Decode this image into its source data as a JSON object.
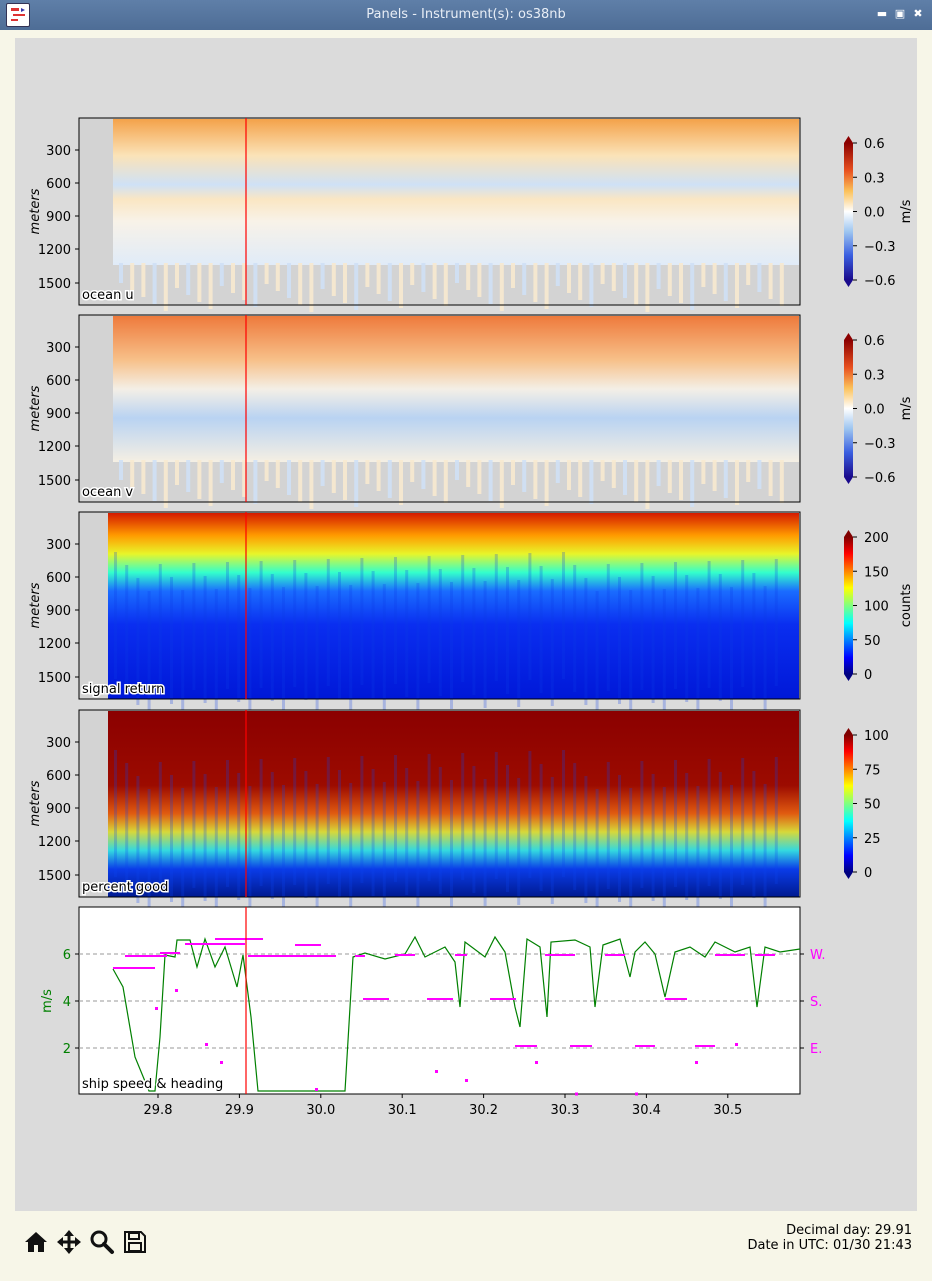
{
  "window": {
    "title": "Panels - Instrument(s): os38nb",
    "icons": [
      "app-icon",
      "minimize-icon",
      "maximize-icon",
      "close-icon"
    ]
  },
  "panels": [
    {
      "label": "ocean u",
      "ylabel": "meters",
      "yticks": [
        "300",
        "600",
        "900",
        "1200",
        "1500"
      ],
      "colorbar": {
        "label": "m/s",
        "ticks": [
          "0.6",
          "0.3",
          "0.0",
          "−0.3",
          "−0.6"
        ],
        "colormap": "red-white-blue"
      }
    },
    {
      "label": "ocean v",
      "ylabel": "meters",
      "yticks": [
        "300",
        "600",
        "900",
        "1200",
        "1500"
      ],
      "colorbar": {
        "label": "m/s",
        "ticks": [
          "0.6",
          "0.3",
          "0.0",
          "−0.3",
          "−0.6"
        ],
        "colormap": "red-white-blue"
      }
    },
    {
      "label": "signal return",
      "ylabel": "meters",
      "yticks": [
        "300",
        "600",
        "900",
        "1200",
        "1500"
      ],
      "colorbar": {
        "label": "counts",
        "ticks": [
          "200",
          "150",
          "100",
          "50",
          "0"
        ],
        "colormap": "jet"
      }
    },
    {
      "label": "percent good",
      "ylabel": "meters",
      "yticks": [
        "300",
        "600",
        "900",
        "1200",
        "1500"
      ],
      "colorbar": {
        "label": "",
        "ticks": [
          "100",
          "75",
          "50",
          "25",
          "0"
        ],
        "colormap": "jet"
      }
    }
  ],
  "speed_panel": {
    "label": "ship speed & heading",
    "ylabel": "m/s",
    "yticks": [
      "6",
      "4",
      "2"
    ],
    "heading_ticks": [
      "W.",
      "S.",
      "E."
    ],
    "xticks": [
      "29.8",
      "29.9",
      "30.0",
      "30.1",
      "30.2",
      "30.3",
      "30.4",
      "30.5"
    ],
    "speed_color": "#008000",
    "heading_color": "#ff00ff",
    "cursor_color": "#ff0000"
  },
  "toolbar": {
    "buttons": [
      "home-icon",
      "pan-icon",
      "zoom-icon",
      "save-icon"
    ]
  },
  "status": {
    "decimal_day": "Decimal day: 29.91",
    "utc": "Date in UTC: 01/30 21:43"
  }
}
